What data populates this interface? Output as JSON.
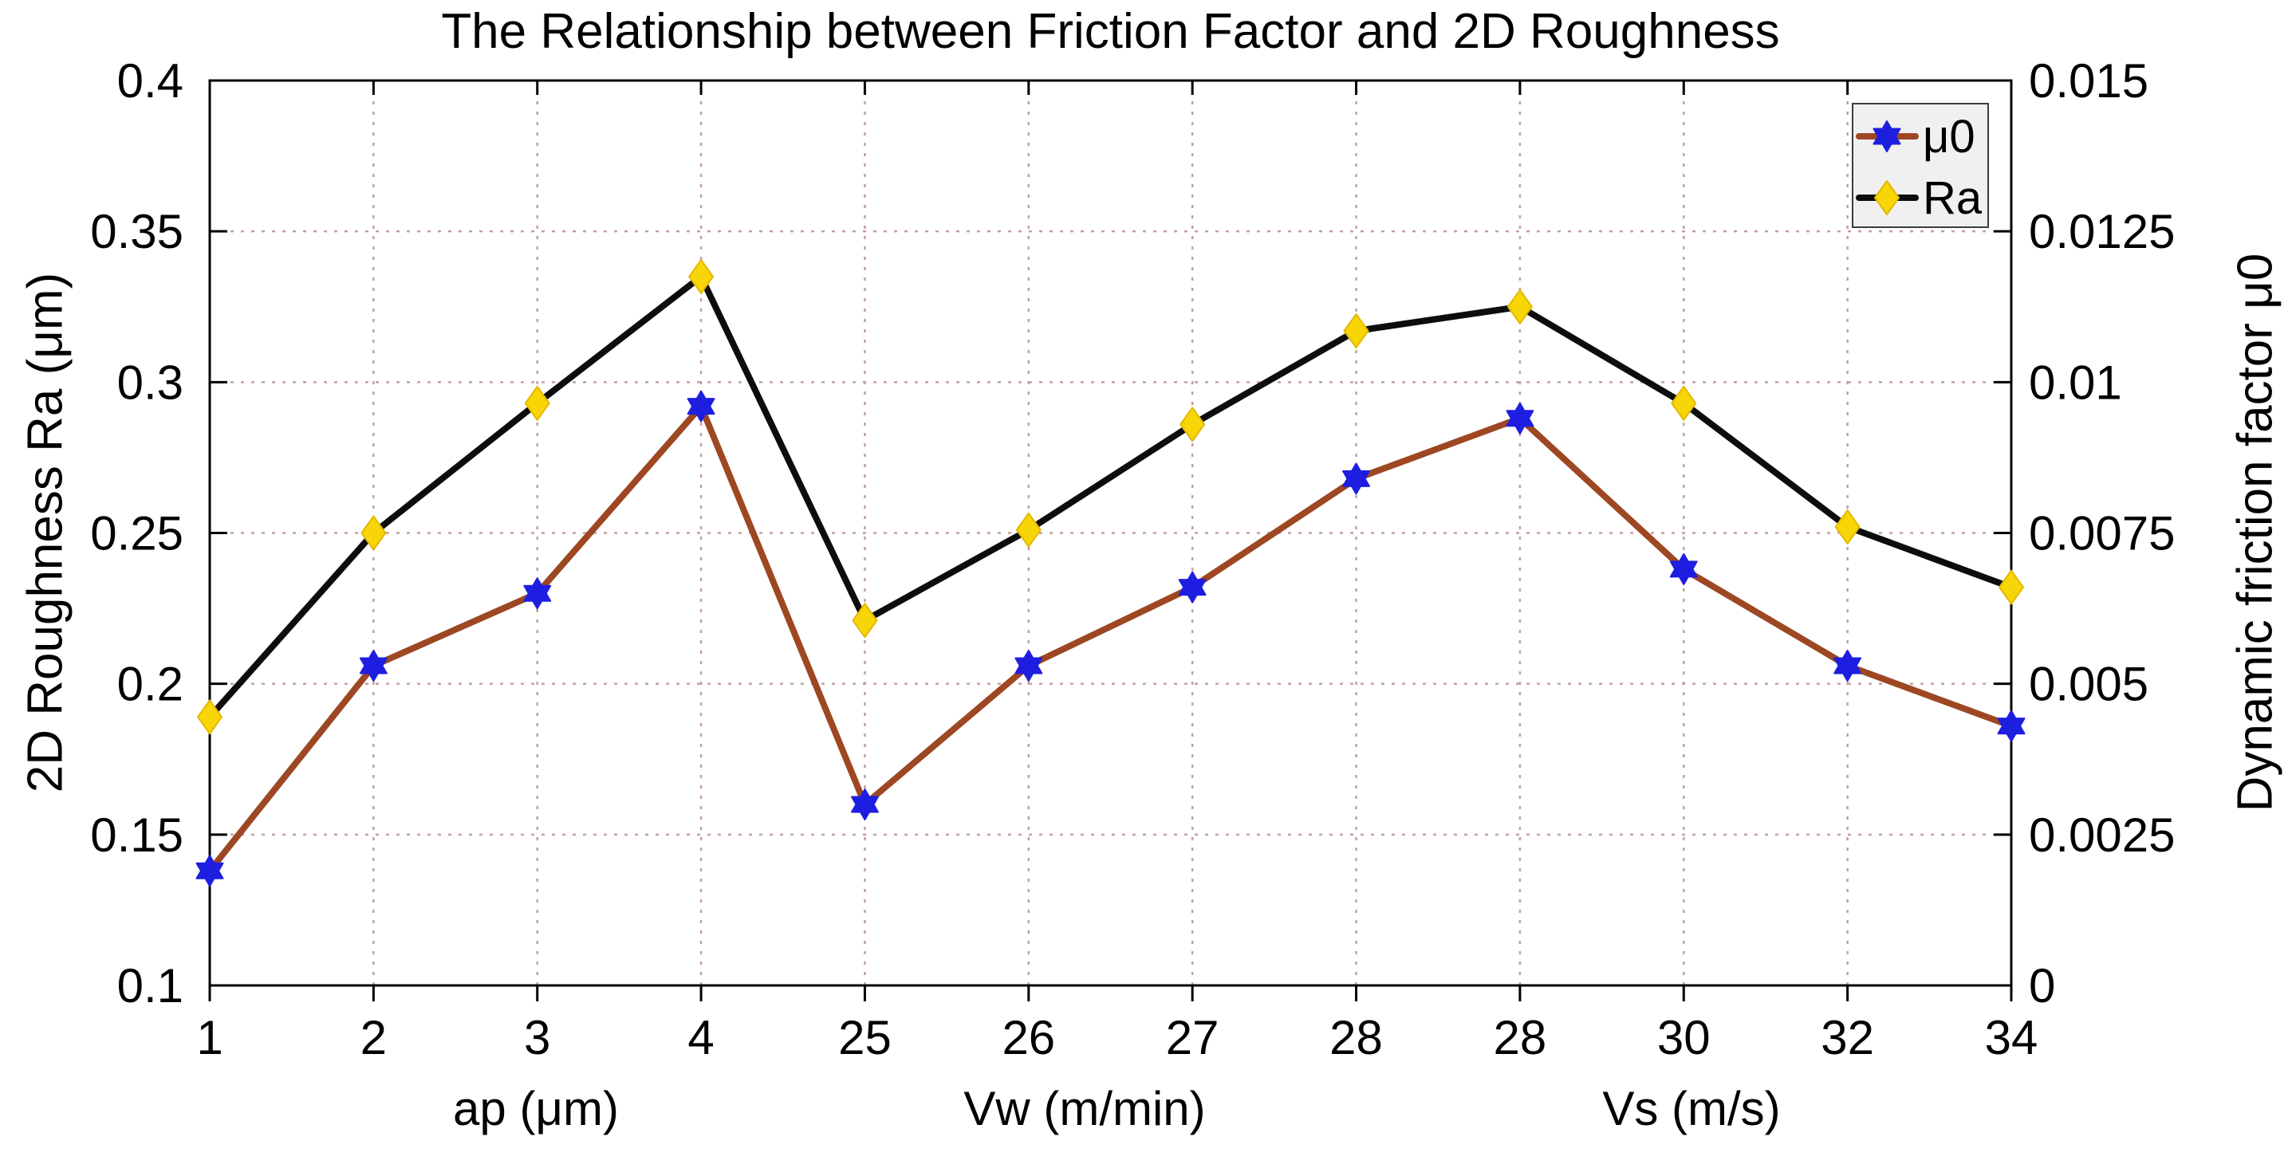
{
  "title": "The Relationship between Friction Factor and 2D Roughness",
  "colors": {
    "background": "#ffffff",
    "axis": "#000000",
    "grid": "#c79e9e",
    "mu0_line": "#9d4723",
    "mu0_marker": "#1e1ee0",
    "ra_line": "#0d0d0d",
    "ra_marker": "#f7d506",
    "ra_marker_edge": "#e3b800",
    "legend_bg": "#f0f0f0",
    "legend_border": "#3c3c3c"
  },
  "chart_data": {
    "type": "line",
    "title": "The Relationship between Friction Factor and 2D Roughness",
    "categories": [
      "1",
      "2",
      "3",
      "4",
      "25",
      "26",
      "27",
      "28",
      "28",
      "30",
      "32",
      "34"
    ],
    "x_group_labels": [
      {
        "label": "ap  (μm)",
        "center_index": 2.0
      },
      {
        "label": "Vw  (m/min)",
        "center_index": 5.35
      },
      {
        "label": "Vs  (m/s)",
        "center_index": 9.05
      }
    ],
    "left_axis": {
      "label": "2D Roughness  Ra  (μm)",
      "min": 0.1,
      "max": 0.4,
      "tick_labels": [
        "0.1",
        "0.15",
        "0.2",
        "0.25",
        "0.3",
        "0.35",
        "0.4"
      ],
      "tick_values": [
        0.1,
        0.15,
        0.2,
        0.25,
        0.3,
        0.35,
        0.4
      ]
    },
    "right_axis": {
      "label": "Dynamic friction factor μ0",
      "min": 0,
      "max": 0.015,
      "tick_labels": [
        "0",
        "0.0025",
        "0.005",
        "0.0075",
        "0.01",
        "0.0125",
        "0.015"
      ],
      "tick_values": [
        0,
        0.0025,
        0.005,
        0.0075,
        0.01,
        0.0125,
        0.015
      ]
    },
    "grid": true,
    "legend_position": "top-right",
    "series": [
      {
        "name": "μ0",
        "axis": "right",
        "marker": "hexagram",
        "line_color": "#9d4723",
        "marker_color": "#1e1ee0",
        "values": [
          0.0019,
          0.0053,
          0.0065,
          0.0096,
          0.003,
          0.0053,
          0.0066,
          0.0084,
          0.0094,
          0.0069,
          0.0053,
          0.0043
        ]
      },
      {
        "name": "Ra",
        "axis": "left",
        "marker": "diamond",
        "line_color": "#0d0d0d",
        "marker_color": "#f7d506",
        "values": [
          0.189,
          0.25,
          0.293,
          0.335,
          0.221,
          0.251,
          0.286,
          0.317,
          0.325,
          0.293,
          0.252,
          0.232
        ]
      }
    ]
  }
}
